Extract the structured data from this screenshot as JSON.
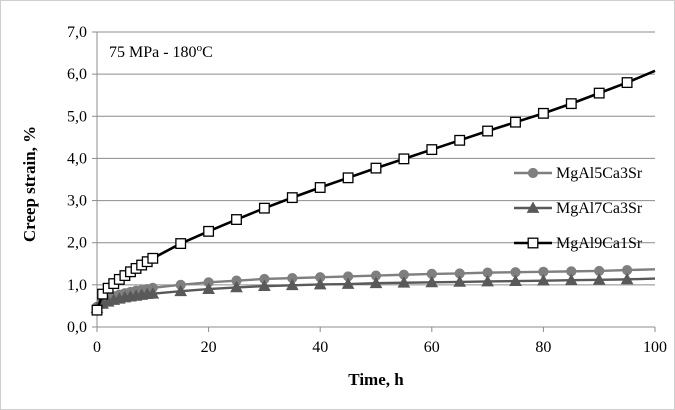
{
  "chart_data": {
    "type": "line",
    "title": "",
    "annotation": {
      "text": "75 MPa - 180",
      "sup": "o",
      "unit": "C"
    },
    "xlabel": "Time, h",
    "ylabel": "Creep strain, %",
    "xlim": [
      0,
      100
    ],
    "ylim": [
      0,
      7
    ],
    "x_ticks": [
      0,
      20,
      40,
      60,
      80,
      100
    ],
    "y_ticks": [
      0,
      1,
      2,
      3,
      4,
      5,
      6,
      7
    ],
    "y_tick_labels": [
      "0,0",
      "1,0",
      "2,0",
      "3,0",
      "4,0",
      "5,0",
      "6,0",
      "7,0"
    ],
    "grid": "horizontal",
    "legend_position": "right",
    "series": [
      {
        "name": "MgAl5Ca3Sr",
        "color": "#7f7f7f",
        "marker": "circle",
        "x": [
          0,
          1,
          2,
          3,
          4,
          5,
          6,
          7,
          8,
          9,
          10,
          15,
          20,
          25,
          30,
          35,
          40,
          45,
          50,
          55,
          60,
          65,
          70,
          75,
          80,
          85,
          90,
          95,
          100
        ],
        "y": [
          0.48,
          0.62,
          0.68,
          0.73,
          0.77,
          0.8,
          0.83,
          0.86,
          0.88,
          0.9,
          0.93,
          1.0,
          1.06,
          1.1,
          1.14,
          1.16,
          1.18,
          1.2,
          1.22,
          1.24,
          1.26,
          1.27,
          1.29,
          1.3,
          1.31,
          1.32,
          1.33,
          1.35,
          1.37
        ]
      },
      {
        "name": "MgAl7Ca3Sr",
        "color": "#595959",
        "marker": "triangle",
        "x": [
          0,
          1,
          2,
          3,
          4,
          5,
          6,
          7,
          8,
          9,
          10,
          15,
          20,
          25,
          30,
          35,
          40,
          45,
          50,
          55,
          60,
          65,
          70,
          75,
          80,
          85,
          90,
          95,
          100
        ],
        "y": [
          0.45,
          0.55,
          0.6,
          0.64,
          0.67,
          0.7,
          0.72,
          0.74,
          0.76,
          0.78,
          0.79,
          0.85,
          0.9,
          0.94,
          0.97,
          0.99,
          1.01,
          1.02,
          1.04,
          1.05,
          1.06,
          1.07,
          1.08,
          1.09,
          1.1,
          1.11,
          1.12,
          1.13,
          1.15
        ]
      },
      {
        "name": "MgAl9Ca1Sr",
        "color": "#000000",
        "marker": "square-open",
        "x": [
          0,
          1,
          2,
          3,
          4,
          5,
          6,
          7,
          8,
          9,
          10,
          15,
          20,
          25,
          30,
          35,
          40,
          45,
          50,
          55,
          60,
          65,
          70,
          75,
          80,
          85,
          90,
          95,
          100
        ],
        "y": [
          0.4,
          0.78,
          0.92,
          1.03,
          1.13,
          1.22,
          1.31,
          1.39,
          1.47,
          1.55,
          1.63,
          1.98,
          2.27,
          2.55,
          2.82,
          3.07,
          3.31,
          3.54,
          3.77,
          3.99,
          4.21,
          4.43,
          4.65,
          4.86,
          5.07,
          5.3,
          5.55,
          5.8,
          6.08
        ]
      }
    ]
  }
}
